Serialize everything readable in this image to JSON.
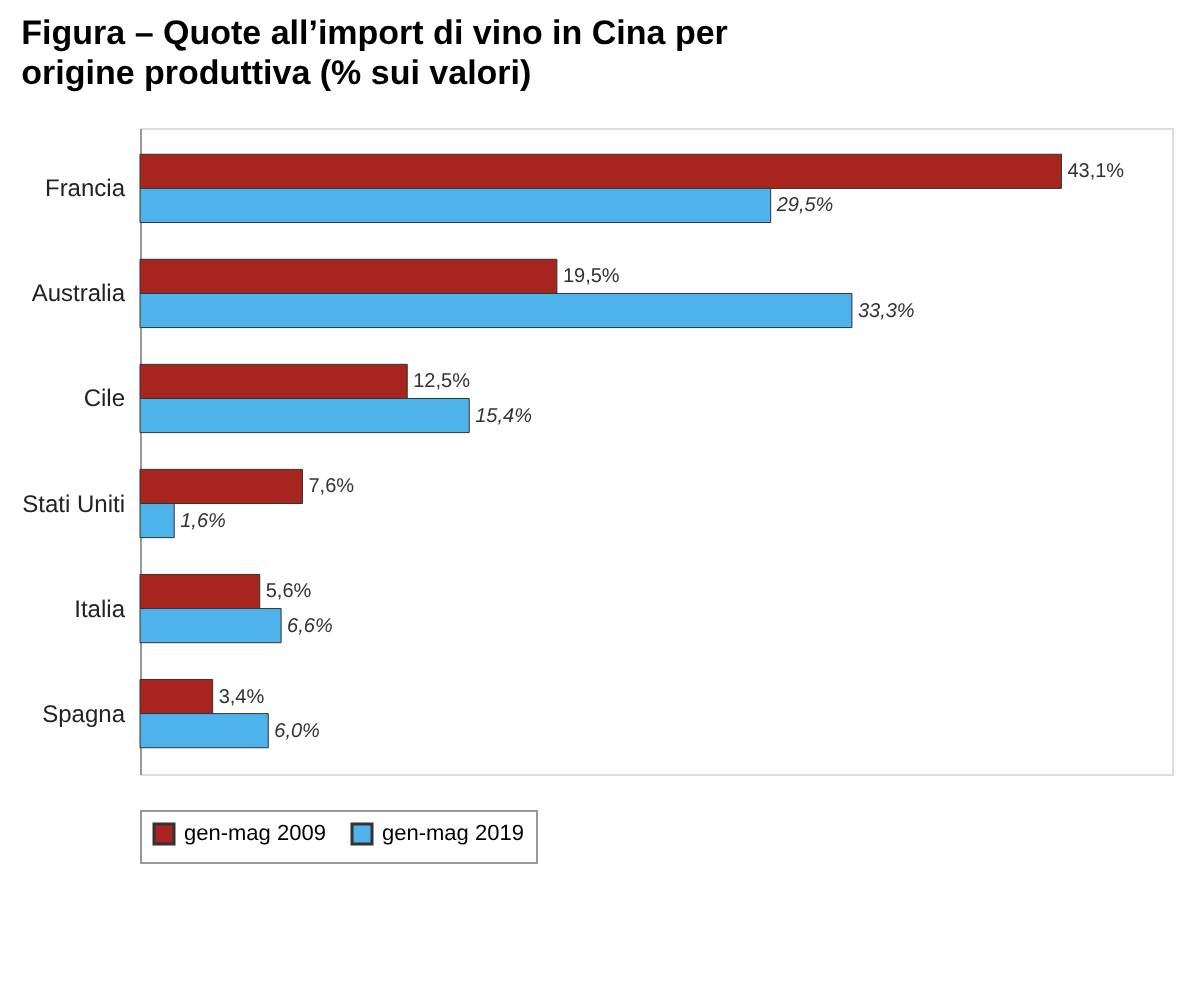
{
  "chart_data": {
    "type": "bar",
    "orientation": "horizontal",
    "title": "Figura – Quote all’import di vino in Cina per origine produttiva (% sui valori)",
    "categories": [
      "Francia",
      "Australia",
      "Cile",
      "Stati Uniti",
      "Italia",
      "Spagna"
    ],
    "series": [
      {
        "name": "gen-mag 2009",
        "color": "#a8241f",
        "values": [
          43.1,
          19.5,
          12.5,
          7.6,
          5.6,
          3.4
        ],
        "value_labels": [
          "43,1%",
          "19,5%",
          "12,5%",
          "7,6%",
          "5,6%",
          "3,4%"
        ]
      },
      {
        "name": "gen-mag 2019",
        "color": "#4db3ea",
        "values": [
          29.5,
          33.3,
          15.4,
          1.6,
          6.6,
          6.0
        ],
        "value_labels": [
          "29,5%",
          "33,3%",
          "15,4%",
          "1,6%",
          "6,6%",
          "6,0%"
        ]
      }
    ],
    "legend": "bottom",
    "grid": false
  }
}
